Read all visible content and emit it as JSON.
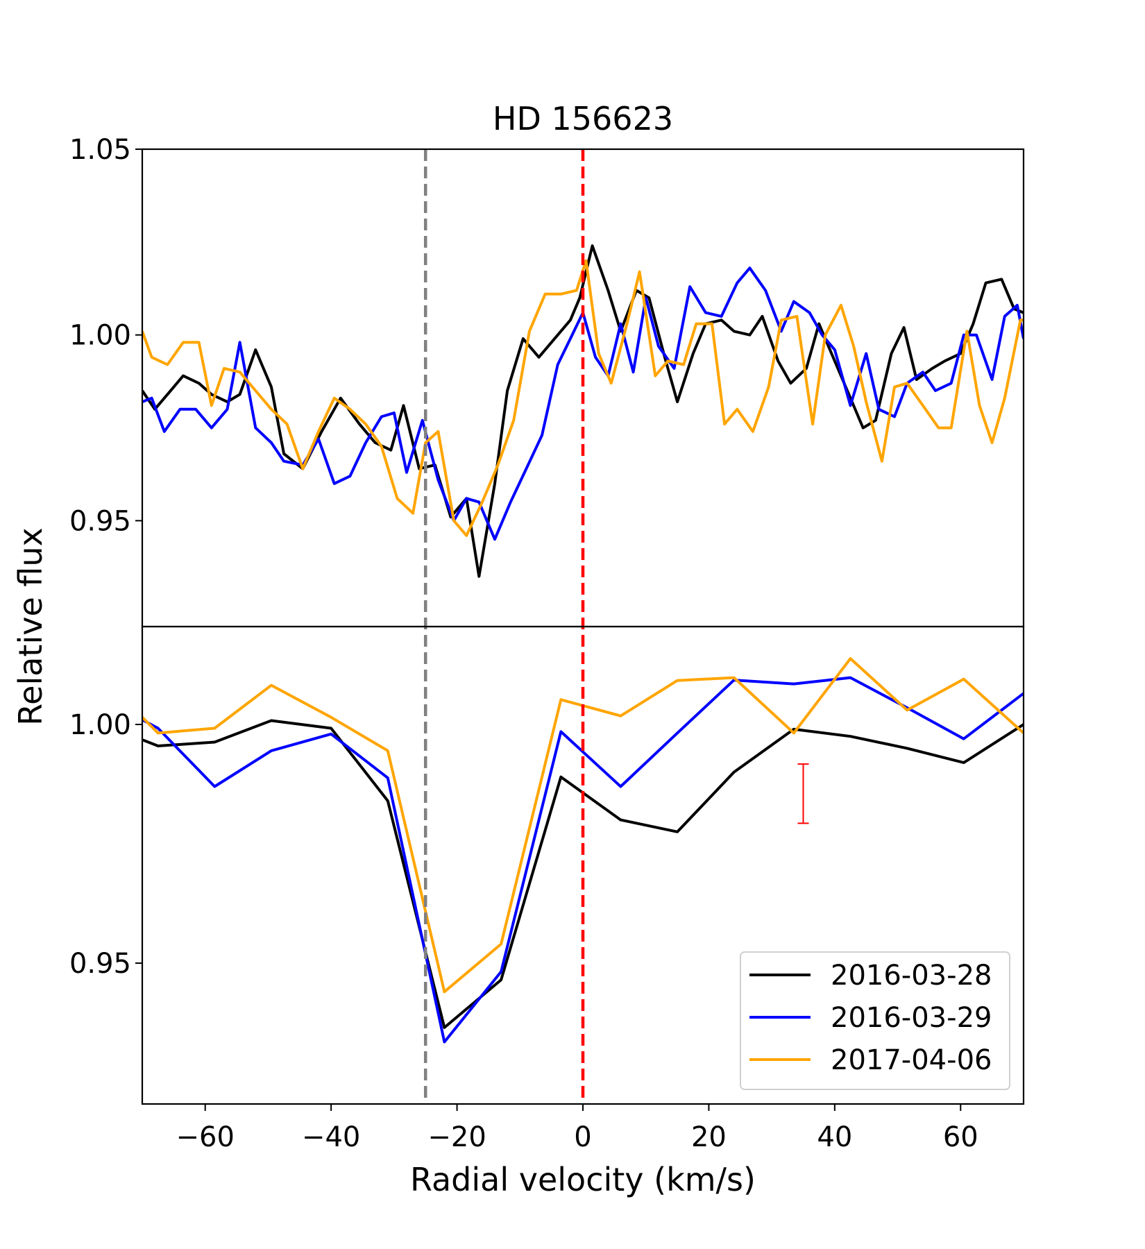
{
  "chart_data": {
    "type": "line",
    "title": "HD 156623",
    "xlabel": "Radial velocity (km/s)",
    "ylabel": "Relative flux",
    "xlim": [
      -70,
      70
    ],
    "xticks": [
      -60,
      -40,
      -20,
      0,
      20,
      40,
      60
    ],
    "xtick_labels": [
      "−60",
      "−40",
      "−20",
      "0",
      "20",
      "40",
      "60"
    ],
    "reference_lines": [
      {
        "name": "gray-dashed-line",
        "x": -25,
        "color": "#808080",
        "style": "dashed"
      },
      {
        "name": "red-dashed-line",
        "x": 0,
        "color": "#ff0000",
        "style": "dashed"
      }
    ],
    "legend": {
      "placement": "lower-right",
      "entries": [
        {
          "label": "2016-03-28",
          "color": "#000000"
        },
        {
          "label": "2016-03-29",
          "color": "#0000ff"
        },
        {
          "label": "2017-04-06",
          "color": "#ffa500"
        }
      ]
    },
    "panels": [
      {
        "name": "top",
        "ylim": [
          0.9215,
          1.05
        ],
        "yticks": [
          0.95,
          1.0,
          1.05
        ],
        "ytick_labels": [
          "0.95",
          "1.00",
          "1.05"
        ],
        "series": [
          {
            "name": "2016-03-28",
            "color": "#000000",
            "x": [
              -70,
              -68,
              -66,
              -63.5,
              -61,
              -59,
              -56.5,
              -54.5,
              -52,
              -49.5,
              -47.5,
              -44.5,
              -41.5,
              -38.5,
              -35.5,
              -33,
              -30.5,
              -28.5,
              -26,
              -23.5,
              -21,
              -18.5,
              -16.5,
              -14,
              -12,
              -9.5,
              -7,
              -4.5,
              -2,
              -0.5,
              1.5,
              4,
              6,
              8.5,
              10.5,
              13,
              15,
              17.5,
              19.5,
              22,
              24,
              26.5,
              28.5,
              31,
              33,
              35.5,
              37.5,
              39.5,
              42,
              44.5,
              46.5,
              49,
              51,
              53,
              55.5,
              57.5,
              60,
              62,
              64,
              66.5,
              68.5,
              70
            ],
            "y": [
              0.985,
              0.98,
              0.984,
              0.989,
              0.987,
              0.984,
              0.982,
              0.984,
              0.996,
              0.986,
              0.968,
              0.964,
              0.974,
              0.983,
              0.976,
              0.971,
              0.969,
              0.981,
              0.964,
              0.965,
              0.951,
              0.956,
              0.935,
              0.96,
              0.985,
              0.999,
              0.994,
              0.999,
              1.004,
              1.01,
              1.024,
              1.012,
              1.001,
              1.012,
              1.01,
              0.994,
              0.982,
              0.995,
              1.003,
              1.004,
              1.001,
              1.0,
              1.005,
              0.993,
              0.987,
              0.991,
              1.003,
              0.995,
              0.985,
              0.975,
              0.977,
              0.995,
              1.002,
              0.988,
              0.991,
              0.993,
              0.995,
              1.003,
              1.014,
              1.015,
              1.007,
              1.006
            ]
          },
          {
            "name": "2016-03-29",
            "color": "#0000ff",
            "x": [
              -70,
              -68.5,
              -66.5,
              -64,
              -61.5,
              -59,
              -56.5,
              -54.5,
              -52,
              -49.5,
              -47.5,
              -44.5,
              -42,
              -39.5,
              -37,
              -34.5,
              -32,
              -30,
              -28,
              -25.5,
              -23,
              -20.5,
              -18.5,
              -16.5,
              -14,
              -11.5,
              -9,
              -6.5,
              -4,
              -2,
              0,
              2,
              4,
              6,
              8,
              10,
              12,
              14.5,
              17,
              19.5,
              22,
              24.5,
              26.5,
              29,
              31.5,
              33.5,
              36,
              38,
              40,
              42.5,
              45,
              47,
              49.5,
              51.5,
              54,
              56,
              58.5,
              60.5,
              62.5,
              65,
              67,
              69,
              70
            ],
            "y": [
              0.982,
              0.983,
              0.974,
              0.98,
              0.98,
              0.975,
              0.98,
              0.998,
              0.975,
              0.971,
              0.966,
              0.965,
              0.972,
              0.96,
              0.962,
              0.971,
              0.978,
              0.979,
              0.963,
              0.977,
              0.961,
              0.95,
              0.956,
              0.955,
              0.945,
              0.955,
              0.964,
              0.973,
              0.992,
              0.999,
              1.006,
              0.994,
              0.989,
              1.003,
              0.99,
              1.01,
              0.997,
              0.991,
              1.013,
              1.006,
              1.005,
              1.014,
              1.018,
              1.012,
              1.001,
              1.009,
              1.006,
              1.0,
              0.996,
              0.981,
              0.995,
              0.98,
              0.978,
              0.987,
              0.99,
              0.985,
              0.987,
              1.0,
              1.0,
              0.988,
              1.005,
              1.008,
              0.999
            ]
          },
          {
            "name": "2017-04-06",
            "color": "#ffa500",
            "x": [
              -70,
              -68.5,
              -66,
              -63.5,
              -61,
              -59,
              -57,
              -54.5,
              -52,
              -49.5,
              -47,
              -44.5,
              -42,
              -39.5,
              -37,
              -34.5,
              -32,
              -29.5,
              -27,
              -25,
              -23,
              -20.5,
              -18.5,
              -16,
              -13.5,
              -11,
              -8.5,
              -6,
              -3.5,
              -1,
              0.5,
              2.5,
              4.5,
              7,
              9,
              11.5,
              13.5,
              16,
              18,
              20.5,
              22.5,
              24.5,
              27,
              29.5,
              31.5,
              34,
              36.5,
              38.5,
              41,
              43,
              45,
              47.5,
              49.5,
              51.5,
              54,
              56.5,
              58.5,
              61,
              63,
              65,
              67,
              69.5,
              70
            ],
            "y": [
              1.001,
              0.994,
              0.992,
              0.998,
              0.998,
              0.981,
              0.991,
              0.99,
              0.985,
              0.98,
              0.976,
              0.964,
              0.974,
              0.983,
              0.98,
              0.976,
              0.97,
              0.956,
              0.952,
              0.971,
              0.974,
              0.95,
              0.946,
              0.955,
              0.965,
              0.977,
              1.001,
              1.011,
              1.011,
              1.012,
              1.02,
              0.995,
              0.987,
              1.003,
              1.017,
              0.989,
              0.993,
              0.992,
              1.003,
              1.003,
              0.976,
              0.98,
              0.974,
              0.986,
              1.004,
              1.005,
              0.976,
              1.0,
              1.008,
              0.997,
              0.982,
              0.966,
              0.986,
              0.987,
              0.981,
              0.975,
              0.975,
              1.001,
              0.981,
              0.971,
              0.983,
              1.004,
              1.004
            ]
          }
        ]
      },
      {
        "name": "bottom",
        "ylim": [
          0.9205,
          1.0205
        ],
        "yticks": [
          0.95,
          1.0
        ],
        "ytick_labels": [
          "0.95",
          "1.00"
        ],
        "error_bar": {
          "x": 35,
          "y": 0.9855,
          "yerr": 0.0062,
          "color": "#ff0000"
        },
        "series": [
          {
            "name": "2016-03-28",
            "color": "#000000",
            "x": [
              -70,
              -67.5,
              -58.5,
              -49.5,
              -40,
              -31,
              -22,
              -13,
              -3.5,
              6,
              15,
              24,
              33.5,
              42.5,
              51.5,
              60.5,
              70
            ],
            "y": [
              0.9968,
              0.9955,
              0.9963,
              1.0008,
              0.9992,
              0.984,
              0.9365,
              0.9465,
              0.989,
              0.98,
              0.9775,
              0.99,
              0.999,
              0.9975,
              0.995,
              0.992,
              1.0
            ]
          },
          {
            "name": "2016-03-29",
            "color": "#0000ff",
            "x": [
              -70,
              -67.5,
              -58.5,
              -49.5,
              -40,
              -31,
              -22,
              -13,
              -3.5,
              6,
              15,
              24,
              33.5,
              42.5,
              51.5,
              60.5,
              70
            ],
            "y": [
              1.001,
              0.9992,
              0.987,
              0.9945,
              0.998,
              0.9888,
              0.9335,
              0.9482,
              0.9985,
              0.987,
              0.9982,
              1.0093,
              1.0085,
              1.0098,
              1.0035,
              0.997,
              1.0065
            ]
          },
          {
            "name": "2017-04-06",
            "color": "#ffa500",
            "x": [
              -70,
              -67.5,
              -58.5,
              -49.5,
              -40,
              -31,
              -22,
              -13,
              -3.5,
              6,
              15,
              24,
              33.5,
              42.5,
              51.5,
              60.5,
              70
            ],
            "y": [
              1.0015,
              0.9982,
              0.9992,
              1.0082,
              1.0015,
              0.9945,
              0.944,
              0.954,
              1.0052,
              1.0018,
              1.0092,
              1.0098,
              0.9982,
              1.0138,
              1.003,
              1.0095,
              0.9982
            ]
          }
        ]
      }
    ]
  }
}
